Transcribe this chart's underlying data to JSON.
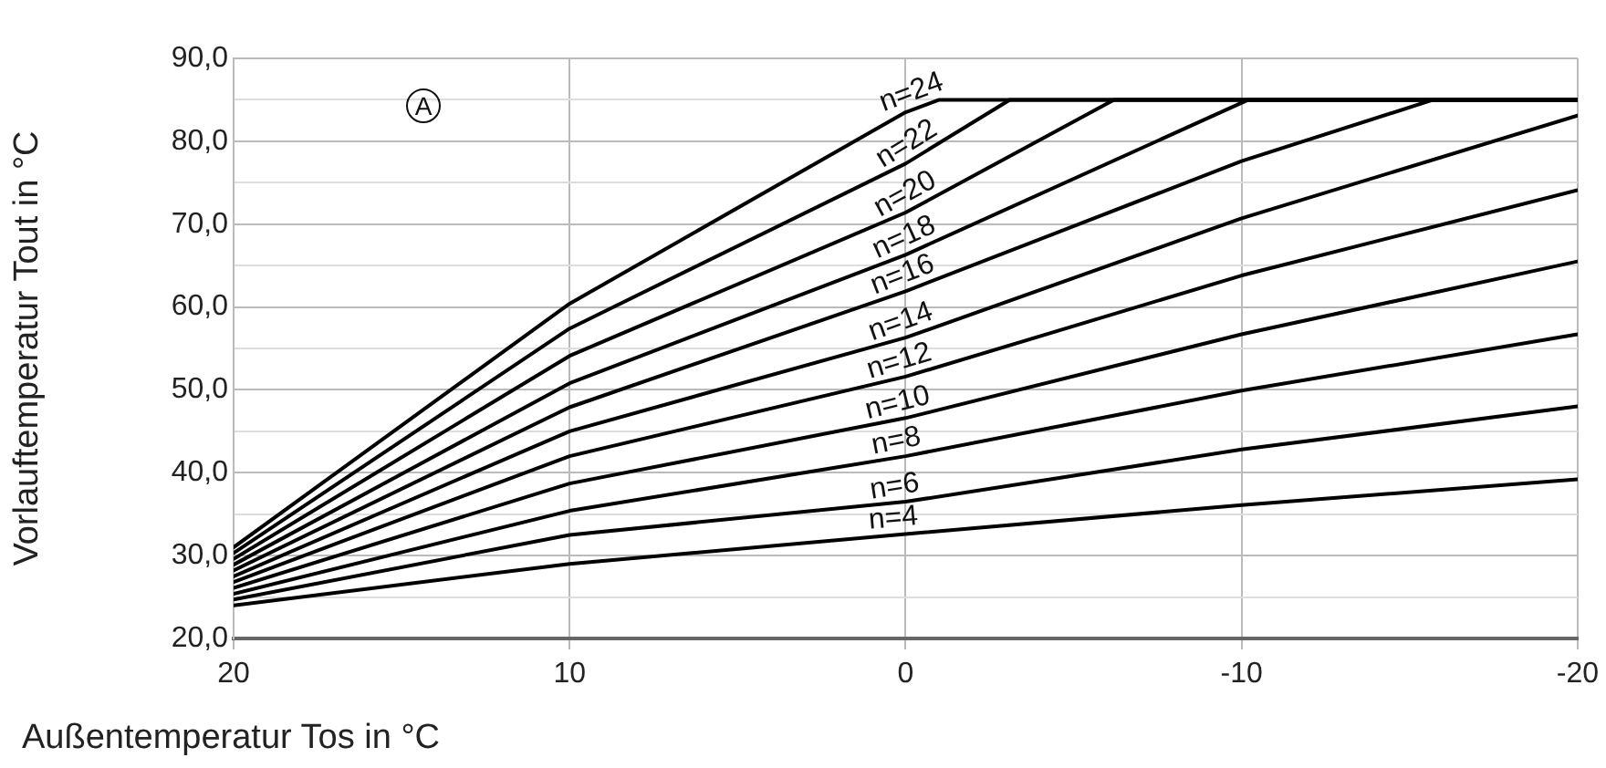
{
  "chart_data": {
    "type": "line",
    "xlabel": "Außentemperatur Tos in °C",
    "ylabel": "Vorlauftemperatur Tout in °C",
    "annotations": [
      "A"
    ],
    "xlim": [
      20,
      -20
    ],
    "xticks": [
      20,
      10,
      0,
      -10,
      -20
    ],
    "ylim": [
      20,
      90
    ],
    "yticks": [
      {
        "value": 20,
        "label": "20,0"
      },
      {
        "value": 25,
        "label": null
      },
      {
        "value": 30,
        "label": "30,0"
      },
      {
        "value": 35,
        "label": null
      },
      {
        "value": 40,
        "label": "40,0"
      },
      {
        "value": 45,
        "label": null
      },
      {
        "value": 50,
        "label": "50,0"
      },
      {
        "value": 55,
        "label": null
      },
      {
        "value": 60,
        "label": "60,0"
      },
      {
        "value": 65,
        "label": null
      },
      {
        "value": 70,
        "label": "70,0"
      },
      {
        "value": 75,
        "label": null
      },
      {
        "value": 80,
        "label": "80,0"
      },
      {
        "value": 85,
        "label": null
      },
      {
        "value": 90,
        "label": "90,0"
      }
    ],
    "grid": true,
    "legend": false,
    "marker": "none",
    "line_style": "solid",
    "series": [
      {
        "name": "n=4",
        "color": "#000000",
        "x": [
          20,
          10,
          0,
          -10,
          -20
        ],
        "values": [
          24.0,
          29.0,
          32.6,
          36.1,
          39.2
        ]
      },
      {
        "name": "n=6",
        "color": "#000000",
        "x": [
          20,
          10,
          0,
          -10,
          -20
        ],
        "values": [
          24.7,
          32.5,
          36.5,
          42.8,
          48.0
        ]
      },
      {
        "name": "n=8",
        "color": "#000000",
        "x": [
          20,
          10,
          0,
          -10,
          -20
        ],
        "values": [
          25.4,
          35.4,
          42.0,
          49.9,
          56.7
        ]
      },
      {
        "name": "n=10",
        "color": "#000000",
        "x": [
          20,
          10,
          0,
          -10,
          -20
        ],
        "values": [
          26.1,
          38.7,
          46.6,
          56.7,
          65.5
        ]
      },
      {
        "name": "n=12",
        "color": "#000000",
        "x": [
          20,
          10,
          0,
          -10,
          -20
        ],
        "values": [
          26.8,
          42.0,
          51.6,
          63.8,
          74.1
        ]
      },
      {
        "name": "n=14",
        "color": "#000000",
        "x": [
          20,
          10,
          0,
          -10,
          -20
        ],
        "values": [
          27.5,
          45.0,
          56.3,
          70.7,
          83.1
        ]
      },
      {
        "name": "n=16",
        "color": "#000000",
        "x": [
          20,
          10,
          0,
          -10,
          -15.7,
          -20
        ],
        "values": [
          28.2,
          47.9,
          61.9,
          77.6,
          85,
          85
        ]
      },
      {
        "name": "n=18",
        "color": "#000000",
        "x": [
          20,
          10,
          0,
          -10.2,
          -20
        ],
        "values": [
          28.9,
          50.8,
          66.3,
          85,
          85
        ]
      },
      {
        "name": "n=20",
        "color": "#000000",
        "x": [
          20,
          10,
          0,
          -6.2,
          -20
        ],
        "values": [
          29.6,
          54.1,
          71.4,
          85,
          85
        ]
      },
      {
        "name": "n=22",
        "color": "#000000",
        "x": [
          20,
          10,
          0,
          -3.1,
          -20
        ],
        "values": [
          30.3,
          57.4,
          77.3,
          85,
          85
        ]
      },
      {
        "name": "n=24",
        "color": "#000000",
        "x": [
          20,
          10,
          0,
          -1,
          -20
        ],
        "values": [
          31.0,
          60.4,
          83.5,
          85,
          85
        ]
      }
    ]
  }
}
